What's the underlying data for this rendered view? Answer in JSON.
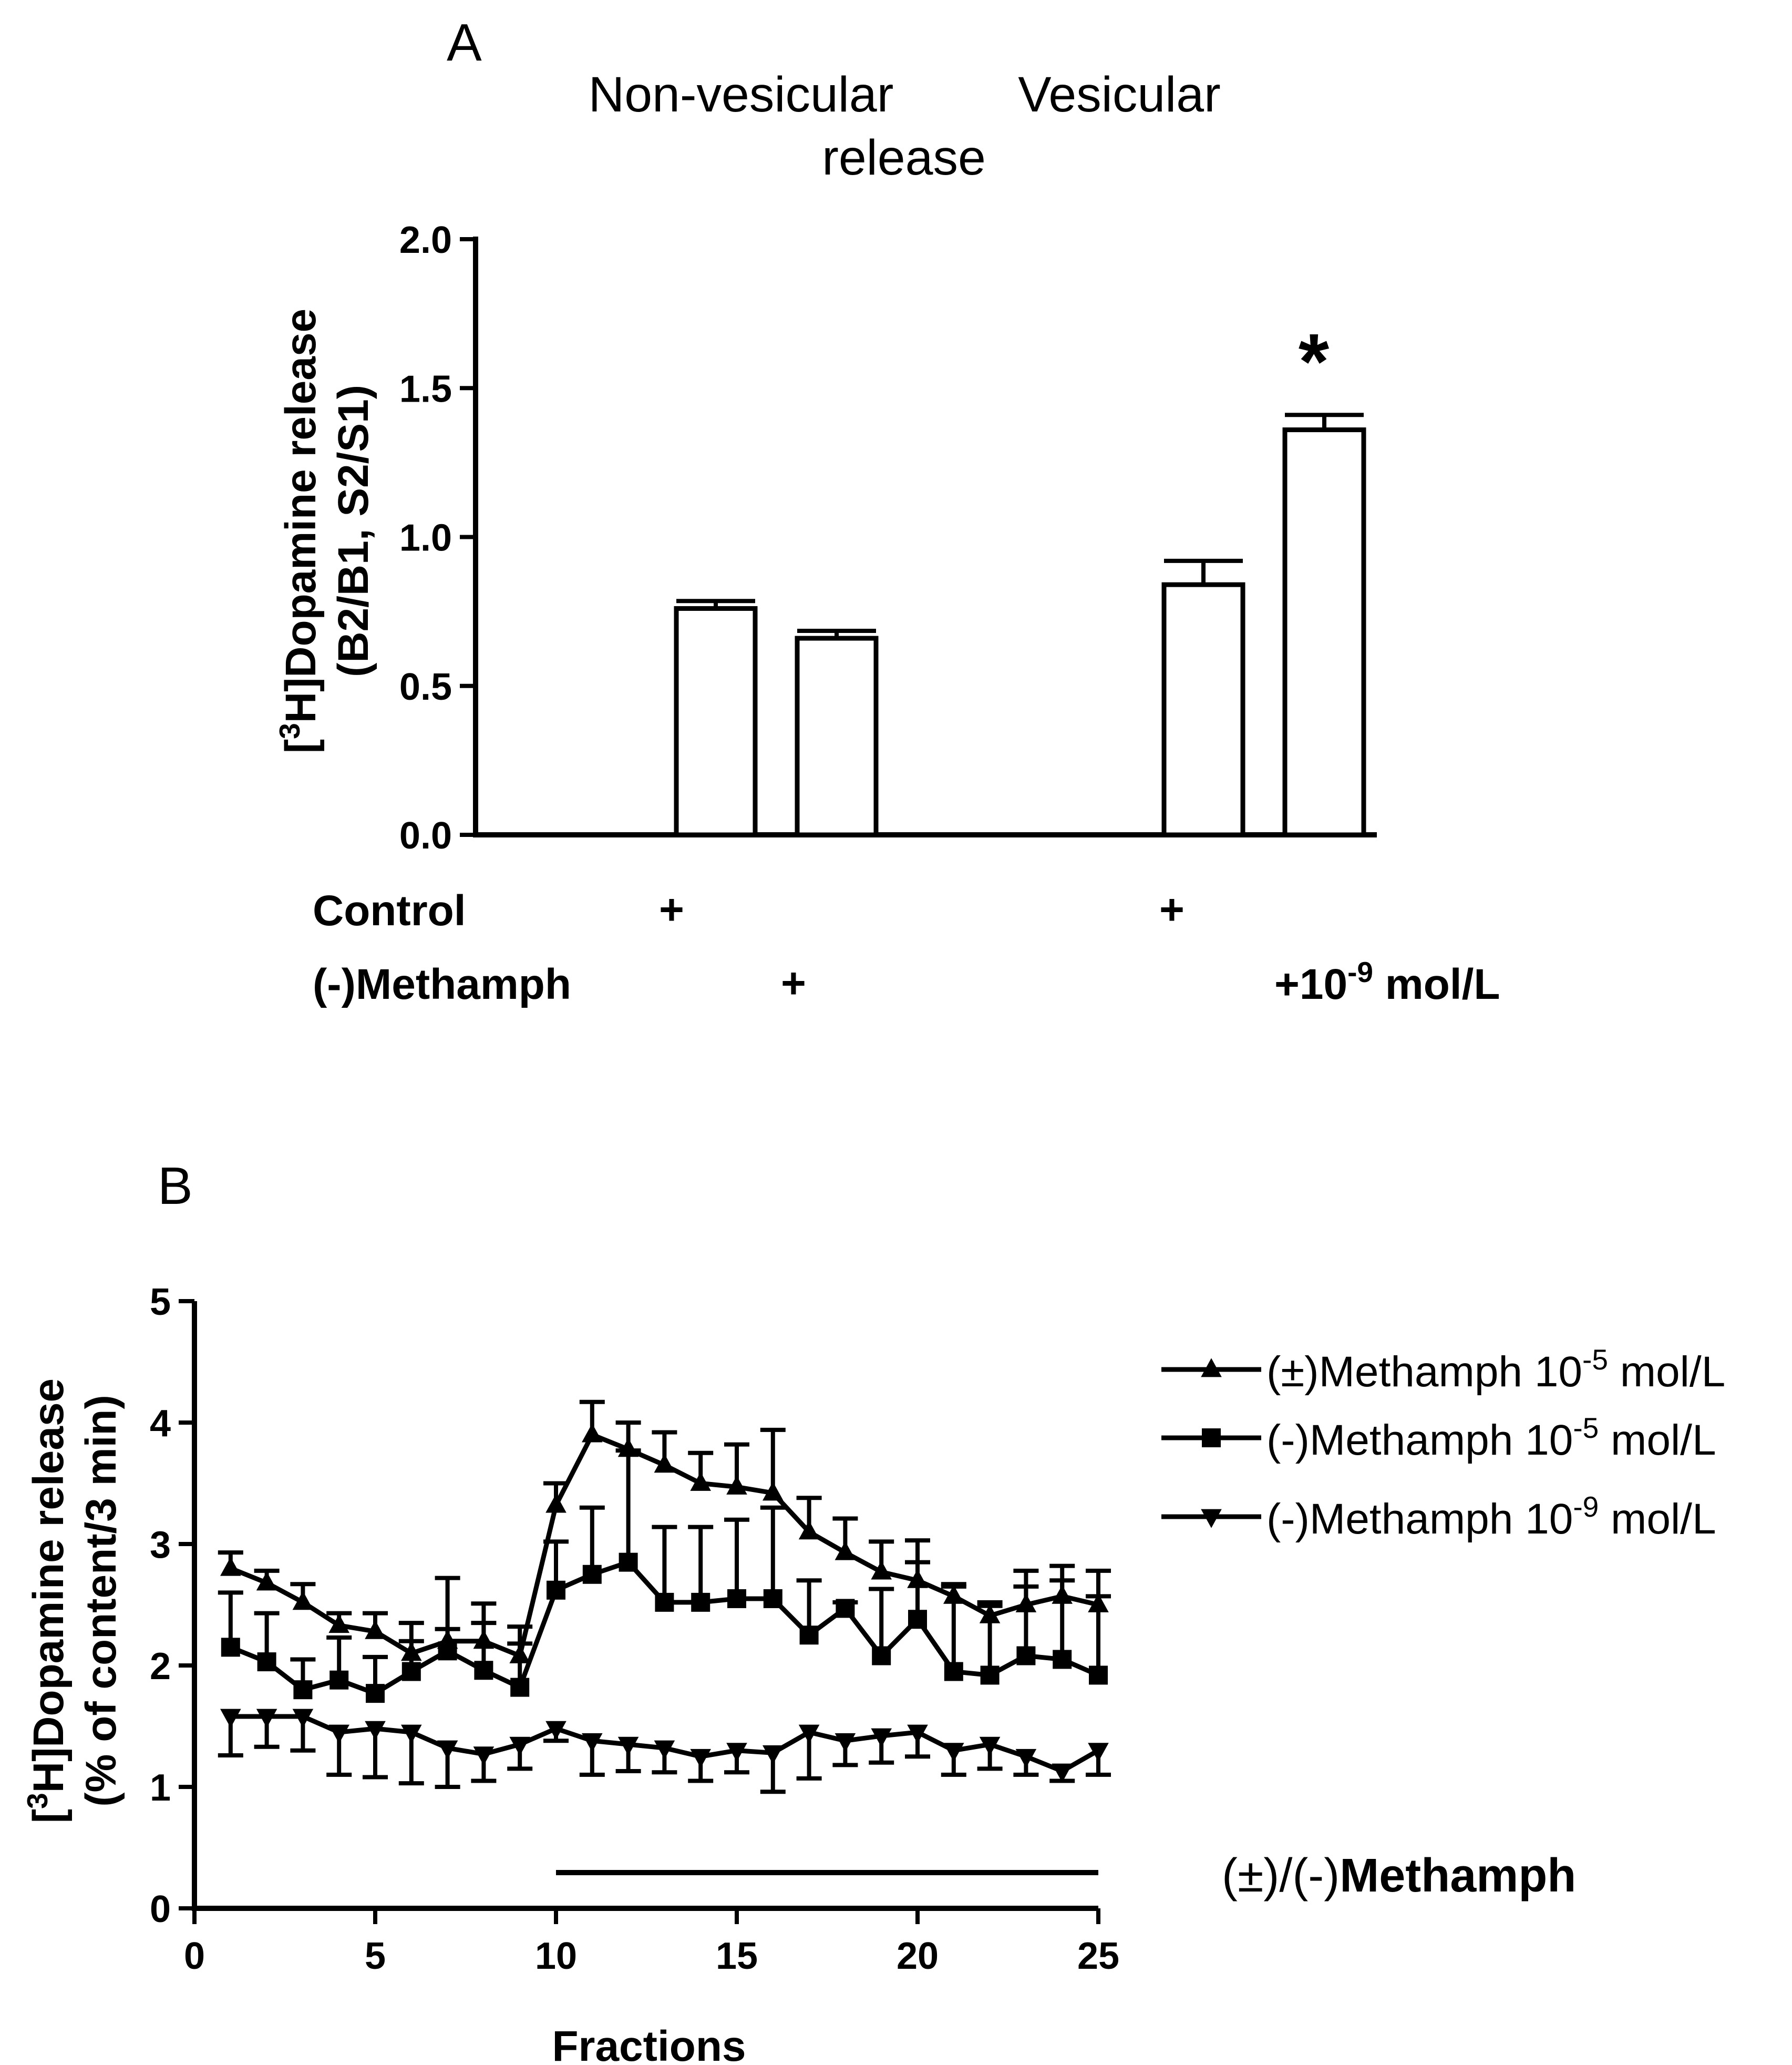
{
  "chart_data": [
    {
      "type": "bar",
      "panel": "A",
      "headers": {
        "group1": "Non-vesicular",
        "group2": "Vesicular",
        "common": "release"
      },
      "ylabel_line1": "[3H]Dopamine release",
      "ylabel_sup": "3",
      "ylabel_pre": "[",
      "ylabel_rest": "H]Dopamine release",
      "ylabel_line2": "(B2/B1, S2/S1)",
      "ylim": [
        0,
        2.0
      ],
      "yticks": [
        "0.0",
        "0.5",
        "1.0",
        "1.5",
        "2.0"
      ],
      "bars": [
        {
          "group": "Non-vesicular",
          "condition": "Control",
          "value": 0.76,
          "err": 0.025
        },
        {
          "group": "Non-vesicular",
          "condition": "(-)Methamph",
          "value": 0.66,
          "err": 0.025
        },
        {
          "group": "Vesicular",
          "condition": "Control",
          "value": 0.84,
          "err": 0.08
        },
        {
          "group": "Vesicular",
          "condition": "(-)Methamph",
          "value": 1.36,
          "err": 0.05
        }
      ],
      "significance": "*",
      "row_labels": {
        "control": "Control",
        "methamph": "(-)Methamph"
      },
      "plus": "+",
      "dose": {
        "prefix": "+10",
        "sup": "-9",
        "suffix": " mol/L"
      }
    },
    {
      "type": "line",
      "panel": "B",
      "xlabel": "Fractions",
      "ylabel_pre": "[",
      "ylabel_sup": "3",
      "ylabel_rest": "H]Dopamine release",
      "ylabel_line2": "(% of content/3 min)",
      "xlim": [
        0,
        25
      ],
      "ylim": [
        0,
        5
      ],
      "xticks": [
        "0",
        "5",
        "10",
        "15",
        "20",
        "25"
      ],
      "yticks": [
        "0",
        "1",
        "2",
        "3",
        "4",
        "5"
      ],
      "x": [
        1,
        2,
        3,
        4,
        5,
        6,
        7,
        8,
        9,
        10,
        11,
        12,
        13,
        14,
        15,
        16,
        17,
        18,
        19,
        20,
        21,
        22,
        23,
        24,
        25
      ],
      "series": [
        {
          "name": "(±)Methamph 10-5 mol/L",
          "label_pre": "(±)Methamph 10",
          "label_sup": "-5",
          "label_post": " mol/L",
          "marker": "triangle-up",
          "values": [
            2.8,
            2.68,
            2.52,
            2.33,
            2.28,
            2.1,
            2.2,
            2.2,
            2.08,
            3.32,
            3.9,
            3.78,
            3.65,
            3.5,
            3.47,
            3.42,
            3.1,
            2.93,
            2.77,
            2.7,
            2.57,
            2.41,
            2.5,
            2.57,
            2.5
          ],
          "errors": [
            0.13,
            0.1,
            0.15,
            0.1,
            0.15,
            0.1,
            0.1,
            0.15,
            0.1,
            0.18,
            0.27,
            0.22,
            0.27,
            0.25,
            0.35,
            0.52,
            0.28,
            0.28,
            0.25,
            0.15,
            0.1,
            0.08,
            0.15,
            0.25,
            0.28
          ]
        },
        {
          "name": "(-)Methamph 10-5 mol/L",
          "label_pre": "(-)Methamph 10",
          "label_sup": "-5",
          "label_post": " mol/L",
          "marker": "square",
          "values": [
            2.15,
            2.03,
            1.8,
            1.88,
            1.77,
            1.95,
            2.12,
            1.96,
            1.82,
            2.62,
            2.75,
            2.85,
            2.52,
            2.52,
            2.55,
            2.55,
            2.25,
            2.47,
            2.08,
            2.38,
            1.95,
            1.92,
            2.08,
            2.05,
            1.92
          ],
          "errors": [
            0.45,
            0.4,
            0.25,
            0.35,
            0.3,
            0.4,
            0.6,
            0.55,
            0.5,
            0.4,
            0.55,
            0.92,
            0.62,
            0.62,
            0.65,
            0.75,
            0.45,
            0.05,
            0.55,
            0.65,
            0.7,
            0.6,
            0.7,
            0.65,
            0.65
          ]
        },
        {
          "name": "(-)Methamph 10-9 mol/L",
          "label_pre": "(-)Methamph 10",
          "label_sup": "-9",
          "label_post": " mol/L",
          "marker": "triangle-down",
          "values": [
            1.58,
            1.58,
            1.58,
            1.45,
            1.48,
            1.45,
            1.32,
            1.27,
            1.35,
            1.48,
            1.38,
            1.35,
            1.32,
            1.25,
            1.3,
            1.28,
            1.45,
            1.38,
            1.42,
            1.45,
            1.3,
            1.35,
            1.25,
            1.13,
            1.3
          ],
          "errors": [
            0.32,
            0.25,
            0.28,
            0.35,
            0.4,
            0.42,
            0.32,
            0.22,
            0.2,
            0.1,
            0.28,
            0.22,
            0.2,
            0.2,
            0.18,
            0.32,
            0.38,
            0.2,
            0.22,
            0.2,
            0.2,
            0.2,
            0.15,
            0.08,
            0.2
          ]
        }
      ],
      "treatment_bar": {
        "from": 10,
        "to": 25,
        "label": "(±)/(-)Methamph"
      }
    }
  ]
}
